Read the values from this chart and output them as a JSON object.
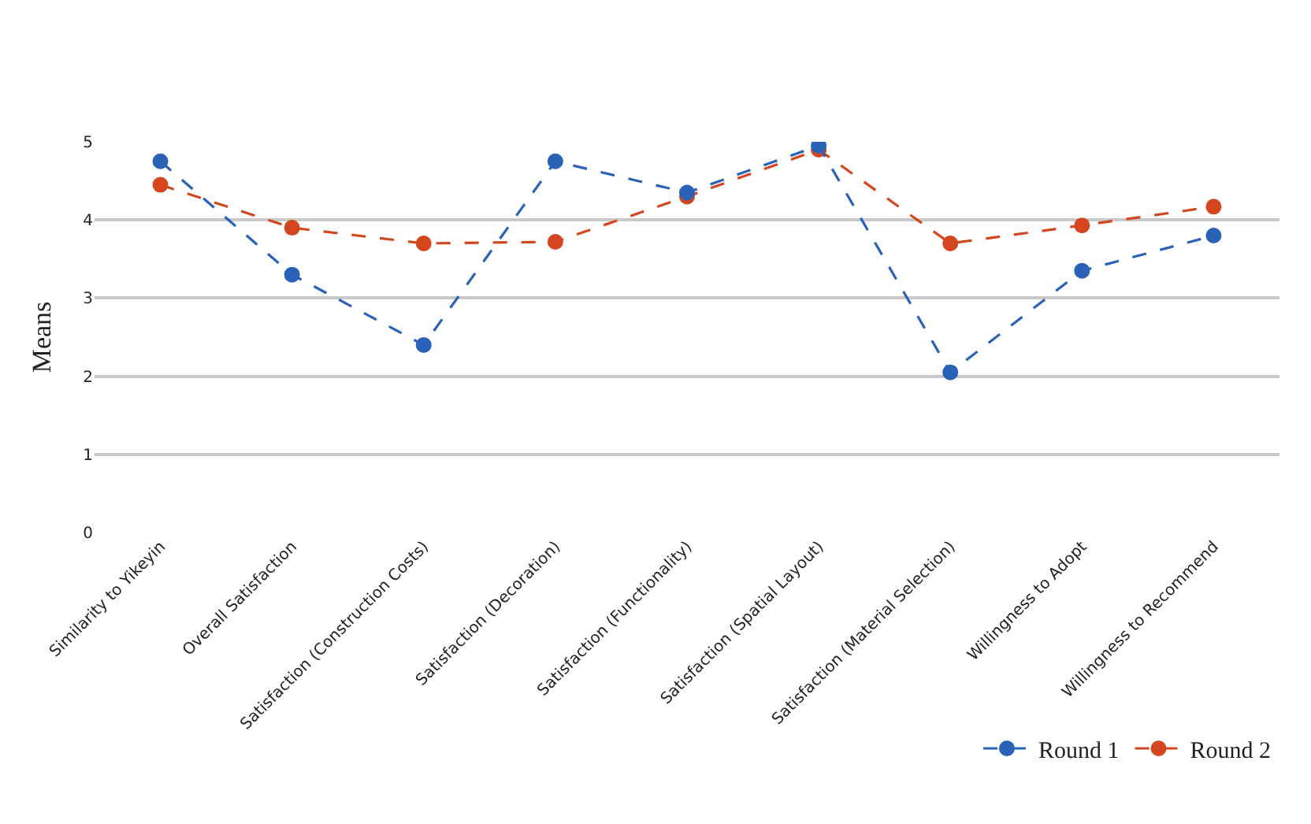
{
  "chart_data": {
    "type": "line",
    "ylabel": "Means",
    "categories": [
      "Similarity to Yikeyin",
      "Overall Satisfaction",
      "Satisfaction (Construction Costs)",
      "Satisfaction (Decoration)",
      "Satisfaction (Functionality)",
      "Satisfaction (Spatial Layout)",
      "Satisfaction (Material Selection)",
      "Willingness to Adopt",
      "Willingness to Recommend"
    ],
    "series": [
      {
        "name": "Round 1",
        "color": "#2a62b8",
        "values": [
          4.75,
          3.3,
          2.4,
          4.75,
          4.35,
          4.95,
          2.05,
          3.35,
          3.8
        ]
      },
      {
        "name": "Round 2",
        "color": "#d4461e",
        "values": [
          4.45,
          3.9,
          3.7,
          3.72,
          4.3,
          4.9,
          3.7,
          3.93,
          4.17
        ]
      }
    ],
    "ylim": [
      0,
      5
    ],
    "yticks": [
      0,
      1,
      2,
      3,
      4,
      5
    ],
    "grid": "y",
    "legend": "bottom right",
    "marker": "circle",
    "line_style": "dashed"
  }
}
